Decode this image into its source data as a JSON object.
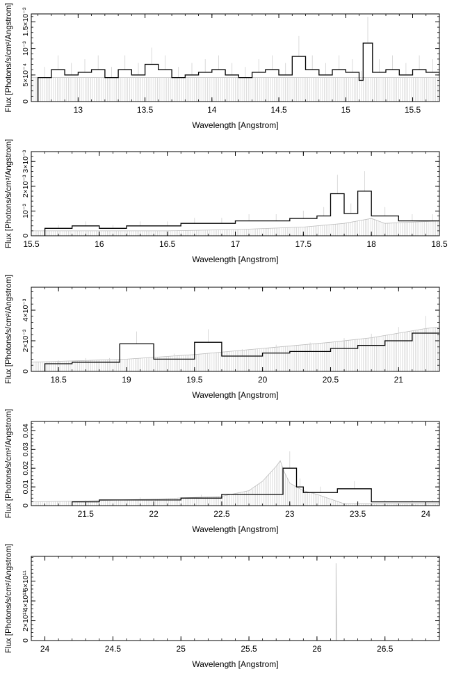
{
  "chart_data": [
    {
      "type": "line",
      "xlabel": "Wavelength [Angstrom]",
      "ylabel": "Flux [Photons/s/cm²/Angstrom]",
      "xlim": [
        12.65,
        15.7
      ],
      "ylim": [
        0,
        0.00165
      ],
      "xticks": [
        {
          "v": 13,
          "t": "13"
        },
        {
          "v": 13.5,
          "t": "13.5"
        },
        {
          "v": 14,
          "t": "14"
        },
        {
          "v": 14.5,
          "t": "14.5"
        },
        {
          "v": 15,
          "t": "15"
        },
        {
          "v": 15.5,
          "t": "15.5"
        }
      ],
      "yticks": [
        {
          "v": 0,
          "t": "0"
        },
        {
          "v": 0.0005,
          "t": "5×10⁻⁴"
        },
        {
          "v": 0.001,
          "t": "10⁻³"
        },
        {
          "v": 0.0015,
          "t": "1.5×10⁻³"
        }
      ],
      "model": [
        [
          12.65,
          0.00045
        ],
        [
          15.7,
          0.00045
        ]
      ],
      "data": [
        [
          12.7,
          0.00045
        ],
        [
          12.8,
          0.0006
        ],
        [
          12.9,
          0.0005
        ],
        [
          13.0,
          0.00055
        ],
        [
          13.1,
          0.0006
        ],
        [
          13.2,
          0.00045
        ],
        [
          13.3,
          0.0006
        ],
        [
          13.4,
          0.0005
        ],
        [
          13.5,
          0.0007
        ],
        [
          13.6,
          0.0006
        ],
        [
          13.7,
          0.00045
        ],
        [
          13.8,
          0.0005
        ],
        [
          13.9,
          0.00055
        ],
        [
          14.0,
          0.0006
        ],
        [
          14.1,
          0.0005
        ],
        [
          14.2,
          0.00045
        ],
        [
          14.3,
          0.00055
        ],
        [
          14.4,
          0.0006
        ],
        [
          14.5,
          0.0005
        ],
        [
          14.6,
          0.00085
        ],
        [
          14.7,
          0.0006
        ],
        [
          14.8,
          0.0005
        ],
        [
          14.9,
          0.0006
        ],
        [
          15.0,
          0.00055
        ],
        [
          15.1,
          0.0004
        ],
        [
          15.13,
          0.0011
        ],
        [
          15.2,
          0.00055
        ],
        [
          15.3,
          0.0006
        ],
        [
          15.4,
          0.0005
        ],
        [
          15.5,
          0.0006
        ],
        [
          15.6,
          0.00055
        ],
        [
          15.7,
          0.0005
        ]
      ]
    },
    {
      "type": "line",
      "xlabel": "Wavelength [Angstrom]",
      "ylabel": "Flux [Photons/s/cm²/Angstrom]",
      "xlim": [
        15.5,
        18.5
      ],
      "ylim": [
        0,
        0.0034
      ],
      "xticks": [
        {
          "v": 15.5,
          "t": "15.5"
        },
        {
          "v": 16,
          "t": "16"
        },
        {
          "v": 16.5,
          "t": "16.5"
        },
        {
          "v": 17,
          "t": "17"
        },
        {
          "v": 17.5,
          "t": "17.5"
        },
        {
          "v": 18,
          "t": "18"
        },
        {
          "v": 18.5,
          "t": "18.5"
        }
      ],
      "yticks": [
        {
          "v": 0,
          "t": "0"
        },
        {
          "v": 0.001,
          "t": "10⁻³"
        },
        {
          "v": 0.002,
          "t": "2×10⁻³"
        },
        {
          "v": 0.003,
          "t": "3×10⁻³"
        }
      ],
      "model": [
        [
          15.5,
          0.0002
        ],
        [
          16.5,
          0.0002
        ],
        [
          17.0,
          0.00025
        ],
        [
          17.5,
          0.00035
        ],
        [
          17.8,
          0.0005
        ],
        [
          18.0,
          0.0007
        ],
        [
          18.1,
          0.0005
        ],
        [
          18.5,
          0.0006
        ]
      ],
      "data": [
        [
          15.6,
          0.0003
        ],
        [
          15.8,
          0.0004
        ],
        [
          16.0,
          0.0003
        ],
        [
          16.2,
          0.0004
        ],
        [
          16.4,
          0.0004
        ],
        [
          16.6,
          0.0005
        ],
        [
          16.8,
          0.0005
        ],
        [
          17.0,
          0.0006
        ],
        [
          17.2,
          0.0006
        ],
        [
          17.4,
          0.0007
        ],
        [
          17.6,
          0.0008
        ],
        [
          17.7,
          0.0017
        ],
        [
          17.8,
          0.0009
        ],
        [
          17.9,
          0.0018
        ],
        [
          18.0,
          0.0008
        ],
        [
          18.2,
          0.0006
        ],
        [
          18.4,
          0.0006
        ]
      ]
    },
    {
      "type": "line",
      "xlabel": "Wavelength [Angstrom]",
      "ylabel": "Flux [Photons/s/cm²/Angstrom]",
      "xlim": [
        18.3,
        21.3
      ],
      "ylim": [
        0,
        0.0055
      ],
      "xticks": [
        {
          "v": 18.5,
          "t": "18.5"
        },
        {
          "v": 19,
          "t": "19"
        },
        {
          "v": 19.5,
          "t": "19.5"
        },
        {
          "v": 20,
          "t": "20"
        },
        {
          "v": 20.5,
          "t": "20.5"
        },
        {
          "v": 21,
          "t": "21"
        }
      ],
      "yticks": [
        {
          "v": 0,
          "t": "0"
        },
        {
          "v": 0.002,
          "t": "2×10⁻³"
        },
        {
          "v": 0.004,
          "t": "4×10⁻³"
        }
      ],
      "model": [
        [
          18.3,
          0.0006
        ],
        [
          19.0,
          0.0008
        ],
        [
          19.5,
          0.0011
        ],
        [
          20.0,
          0.0015
        ],
        [
          20.5,
          0.0019
        ],
        [
          20.8,
          0.0022
        ],
        [
          21.0,
          0.0025
        ],
        [
          21.2,
          0.0028
        ],
        [
          21.3,
          0.0029
        ]
      ],
      "data": [
        [
          18.4,
          0.0005
        ],
        [
          18.6,
          0.0006
        ],
        [
          18.8,
          0.0006
        ],
        [
          18.95,
          0.0018
        ],
        [
          19.2,
          0.0008
        ],
        [
          19.5,
          0.0019
        ],
        [
          19.7,
          0.001
        ],
        [
          20.0,
          0.0012
        ],
        [
          20.2,
          0.0013
        ],
        [
          20.5,
          0.0015
        ],
        [
          20.7,
          0.0017
        ],
        [
          20.9,
          0.002
        ],
        [
          21.1,
          0.0025
        ]
      ]
    },
    {
      "type": "line",
      "xlabel": "Wavelength [Angstrom]",
      "ylabel": "Flux [Photons/s/cm²/Angstrom]",
      "xlim": [
        21.1,
        24.1
      ],
      "ylim": [
        0,
        0.045
      ],
      "xticks": [
        {
          "v": 21.5,
          "t": "21.5"
        },
        {
          "v": 22,
          "t": "22"
        },
        {
          "v": 22.5,
          "t": "22.5"
        },
        {
          "v": 23,
          "t": "23"
        },
        {
          "v": 23.5,
          "t": "23.5"
        },
        {
          "v": 24,
          "t": "24"
        }
      ],
      "yticks": [
        {
          "v": 0,
          "t": "0"
        },
        {
          "v": 0.01,
          "t": "0.01"
        },
        {
          "v": 0.02,
          "t": "0.02"
        },
        {
          "v": 0.03,
          "t": "0.03"
        },
        {
          "v": 0.04,
          "t": "0.04"
        }
      ],
      "model": [
        [
          21.1,
          0.002
        ],
        [
          21.5,
          0.0025
        ],
        [
          22.0,
          0.0035
        ],
        [
          22.5,
          0.005
        ],
        [
          22.7,
          0.008
        ],
        [
          22.8,
          0.013
        ],
        [
          22.9,
          0.021
        ],
        [
          22.93,
          0.024
        ],
        [
          22.96,
          0.018
        ],
        [
          23.0,
          0.012
        ],
        [
          23.1,
          0.008
        ],
        [
          23.2,
          0.006
        ],
        [
          23.3,
          0.0035
        ],
        [
          23.4,
          0.001
        ],
        [
          24.1,
          0.001
        ]
      ],
      "data": [
        [
          21.4,
          0.002
        ],
        [
          21.6,
          0.003
        ],
        [
          22.2,
          0.004
        ],
        [
          22.5,
          0.006
        ],
        [
          22.95,
          0.02
        ],
        [
          23.05,
          0.01
        ],
        [
          23.1,
          0.007
        ],
        [
          23.35,
          0.009
        ],
        [
          23.6,
          0.002
        ],
        [
          23.8,
          0.002
        ],
        [
          24.0,
          0.002
        ]
      ]
    },
    {
      "type": "line",
      "xlabel": "Wavelength [Angstrom]",
      "ylabel": "Flux [Photons/s/cm²/Angstrom]",
      "xlim": [
        23.9,
        26.9
      ],
      "ylim": [
        0,
        850000000000.0
      ],
      "xticks": [
        {
          "v": 24,
          "t": "24"
        },
        {
          "v": 24.5,
          "t": "24.5"
        },
        {
          "v": 25,
          "t": "25"
        },
        {
          "v": 25.5,
          "t": "25.5"
        },
        {
          "v": 26,
          "t": "26"
        },
        {
          "v": 26.5,
          "t": "26.5"
        }
      ],
      "yticks": [
        {
          "v": 0,
          "t": "0"
        },
        {
          "v": 200000000000.0,
          "t": "2×10¹¹"
        },
        {
          "v": 400000000000.0,
          "t": "4×10¹¹"
        },
        {
          "v": 600000000000.0,
          "t": "6×10¹¹"
        }
      ],
      "model": [
        [
          23.9,
          0
        ],
        [
          26.14,
          0
        ],
        [
          26.14,
          780000000000.0
        ],
        [
          26.145,
          0
        ],
        [
          26.9,
          0
        ]
      ],
      "data": []
    }
  ]
}
